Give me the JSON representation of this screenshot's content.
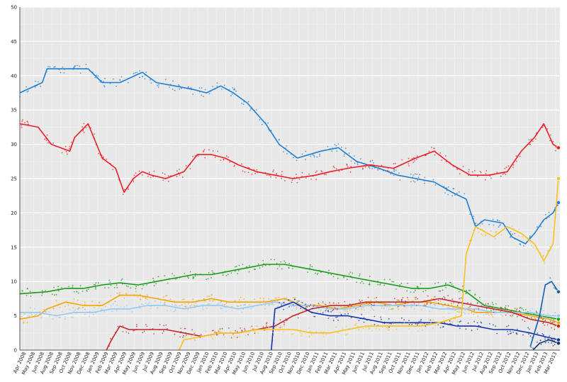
{
  "chart_data": {
    "type": "line",
    "title": "",
    "xlabel": "",
    "ylabel": "",
    "ylim": [
      0,
      50
    ],
    "grid": true,
    "y_ticks": [
      "0",
      "5",
      "10",
      "15",
      "20",
      "25",
      "30",
      "35",
      "40",
      "45",
      "50"
    ],
    "x_ticks": [
      "Apr 2008",
      "May 2008",
      "Jun 2008",
      "Aug 2008",
      "Sep 2008",
      "Oct 2008",
      "Nov 2008",
      "Dec 2008",
      "Jan 2009",
      "Feb 2009",
      "Mar 2009",
      "Apr 2009",
      "May 2009",
      "Jun 2009",
      "Jul 2009",
      "Aug 2009",
      "Sep 2009",
      "Oct 2009",
      "Nov 2009",
      "Dec 2009",
      "Jan 2010",
      "Feb 2010",
      "Mar 2010",
      "Apr 2010",
      "May 2010",
      "Jun 2010",
      "Jul 2010",
      "Aug 2010",
      "Sep 2010",
      "Oct 2010",
      "Nov 2010",
      "Dec 2010",
      "Jan 2011",
      "Feb 2011",
      "Mar 2011",
      "Apr 2011",
      "May 2011",
      "Jun 2011",
      "Jul 2011",
      "Aug 2011",
      "Sep 2011",
      "Oct 2011",
      "Nov 2011",
      "Dec 2011",
      "Jan 2012",
      "Feb 2012",
      "Mar 2012",
      "Apr 2012",
      "May 2012",
      "Jun 2012",
      "Jul 2012",
      "Aug 2012",
      "Sep 2012",
      "Oct 2012",
      "Nov 2012",
      "Dec 2012",
      "Jan 2013",
      "Feb 2013",
      "Mar 2013"
    ],
    "x_start": "2008-04-01",
    "x_end": "2013-03-10",
    "series": [
      {
        "color": "#1f7fd0",
        "values": [
          [
            "2008-04-01",
            37.5
          ],
          [
            "2008-06-15",
            39.0
          ],
          [
            "2008-07-01",
            41.0
          ],
          [
            "2008-09-01",
            41.0
          ],
          [
            "2008-11-15",
            41.0
          ],
          [
            "2009-01-01",
            39.0
          ],
          [
            "2009-03-01",
            39.0
          ],
          [
            "2009-05-15",
            40.5
          ],
          [
            "2009-07-01",
            39.0
          ],
          [
            "2009-09-01",
            38.5
          ],
          [
            "2009-11-01",
            38.0
          ],
          [
            "2009-12-15",
            37.5
          ],
          [
            "2010-02-01",
            38.5
          ],
          [
            "2010-03-15",
            37.5
          ],
          [
            "2010-05-01",
            36.0
          ],
          [
            "2010-07-01",
            33.0
          ],
          [
            "2010-08-15",
            30.0
          ],
          [
            "2010-10-15",
            28.0
          ],
          [
            "2011-01-01",
            29.0
          ],
          [
            "2011-03-01",
            29.5
          ],
          [
            "2011-05-01",
            27.5
          ],
          [
            "2011-07-15",
            26.5
          ],
          [
            "2011-09-15",
            25.5
          ],
          [
            "2011-11-15",
            25.0
          ],
          [
            "2012-01-15",
            24.5
          ],
          [
            "2012-03-15",
            23.0
          ],
          [
            "2012-05-01",
            22.0
          ],
          [
            "2012-06-01",
            18.0
          ],
          [
            "2012-07-01",
            19.0
          ],
          [
            "2012-09-01",
            18.5
          ],
          [
            "2012-10-01",
            16.5
          ],
          [
            "2012-11-15",
            15.5
          ],
          [
            "2012-12-15",
            17.0
          ],
          [
            "2013-01-15",
            19.0
          ],
          [
            "2013-02-15",
            20.0
          ],
          [
            "2013-03-05",
            21.5
          ]
        ]
      },
      {
        "color": "#e8202a",
        "values": [
          [
            "2008-04-01",
            33.0
          ],
          [
            "2008-06-01",
            32.5
          ],
          [
            "2008-07-15",
            30.0
          ],
          [
            "2008-09-15",
            29.0
          ],
          [
            "2008-10-01",
            31.0
          ],
          [
            "2008-11-15",
            33.0
          ],
          [
            "2009-01-01",
            28.0
          ],
          [
            "2009-02-15",
            26.5
          ],
          [
            "2009-03-15",
            23.0
          ],
          [
            "2009-04-15",
            25.0
          ],
          [
            "2009-05-15",
            26.0
          ],
          [
            "2009-06-15",
            25.5
          ],
          [
            "2009-08-01",
            25.0
          ],
          [
            "2009-10-01",
            26.0
          ],
          [
            "2009-11-15",
            28.5
          ],
          [
            "2010-01-01",
            28.5
          ],
          [
            "2010-02-15",
            28.0
          ],
          [
            "2010-04-01",
            27.0
          ],
          [
            "2010-06-01",
            26.0
          ],
          [
            "2010-08-01",
            25.5
          ],
          [
            "2010-10-01",
            25.0
          ],
          [
            "2010-12-15",
            25.5
          ],
          [
            "2011-02-01",
            26.0
          ],
          [
            "2011-04-01",
            26.5
          ],
          [
            "2011-06-15",
            27.0
          ],
          [
            "2011-09-01",
            26.5
          ],
          [
            "2011-11-15",
            28.0
          ],
          [
            "2012-01-15",
            29.0
          ],
          [
            "2012-03-15",
            27.0
          ],
          [
            "2012-05-15",
            25.5
          ],
          [
            "2012-07-15",
            25.5
          ],
          [
            "2012-09-15",
            26.0
          ],
          [
            "2012-11-01",
            29.0
          ],
          [
            "2012-12-15",
            31.0
          ],
          [
            "2013-01-15",
            33.0
          ],
          [
            "2013-02-15",
            30.0
          ],
          [
            "2013-03-05",
            29.5
          ]
        ]
      },
      {
        "color": "#f5a500",
        "values": [
          [
            "2008-04-01",
            4.5
          ],
          [
            "2008-06-01",
            5.0
          ],
          [
            "2008-07-01",
            6.0
          ],
          [
            "2008-09-01",
            7.0
          ],
          [
            "2008-11-01",
            6.5
          ],
          [
            "2009-01-01",
            6.5
          ],
          [
            "2009-03-01",
            8.0
          ],
          [
            "2009-05-01",
            8.0
          ],
          [
            "2009-07-01",
            7.5
          ],
          [
            "2009-09-01",
            7.0
          ],
          [
            "2009-11-01",
            7.0
          ],
          [
            "2010-01-01",
            7.5
          ],
          [
            "2010-03-01",
            7.0
          ],
          [
            "2010-05-01",
            7.0
          ],
          [
            "2010-07-01",
            7.0
          ],
          [
            "2010-09-01",
            7.5
          ],
          [
            "2010-11-01",
            6.5
          ],
          [
            "2011-01-01",
            6.5
          ],
          [
            "2011-03-01",
            6.0
          ],
          [
            "2011-05-01",
            6.5
          ],
          [
            "2011-07-01",
            7.0
          ],
          [
            "2011-09-01",
            6.5
          ],
          [
            "2011-11-01",
            7.0
          ],
          [
            "2012-01-01",
            7.0
          ],
          [
            "2012-03-01",
            6.5
          ],
          [
            "2012-05-01",
            6.0
          ],
          [
            "2012-06-01",
            5.5
          ],
          [
            "2012-08-01",
            5.5
          ],
          [
            "2012-10-01",
            5.5
          ],
          [
            "2012-12-01",
            5.0
          ],
          [
            "2013-02-01",
            4.5
          ],
          [
            "2013-03-05",
            4.0
          ]
        ]
      },
      {
        "color": "#1a9a1a",
        "values": [
          [
            "2008-04-01",
            8.2
          ],
          [
            "2008-07-01",
            8.5
          ],
          [
            "2008-09-01",
            9.0
          ],
          [
            "2008-11-01",
            9.0
          ],
          [
            "2009-01-01",
            9.5
          ],
          [
            "2009-03-01",
            9.8
          ],
          [
            "2009-05-01",
            9.5
          ],
          [
            "2009-07-01",
            10.0
          ],
          [
            "2009-09-01",
            10.5
          ],
          [
            "2009-11-01",
            11.0
          ],
          [
            "2010-01-01",
            11.0
          ],
          [
            "2010-03-01",
            11.5
          ],
          [
            "2010-05-01",
            12.0
          ],
          [
            "2010-07-01",
            12.5
          ],
          [
            "2010-09-01",
            12.5
          ],
          [
            "2010-11-01",
            12.0
          ],
          [
            "2011-01-01",
            11.5
          ],
          [
            "2011-03-01",
            11.0
          ],
          [
            "2011-05-01",
            10.5
          ],
          [
            "2011-07-01",
            10.0
          ],
          [
            "2011-09-01",
            9.5
          ],
          [
            "2011-11-01",
            9.0
          ],
          [
            "2012-01-01",
            9.0
          ],
          [
            "2012-03-01",
            9.5
          ],
          [
            "2012-05-01",
            8.5
          ],
          [
            "2012-07-01",
            6.5
          ],
          [
            "2012-09-01",
            6.0
          ],
          [
            "2012-11-01",
            5.5
          ],
          [
            "2013-01-01",
            5.0
          ],
          [
            "2013-03-05",
            4.5
          ]
        ]
      },
      {
        "color": "#96c8f0",
        "values": [
          [
            "2008-04-01",
            5.5
          ],
          [
            "2008-06-01",
            5.5
          ],
          [
            "2008-08-01",
            5.0
          ],
          [
            "2008-10-01",
            5.5
          ],
          [
            "2008-12-01",
            5.5
          ],
          [
            "2009-02-01",
            6.0
          ],
          [
            "2009-04-01",
            6.0
          ],
          [
            "2009-06-01",
            6.5
          ],
          [
            "2009-08-01",
            6.5
          ],
          [
            "2009-10-01",
            6.0
          ],
          [
            "2009-12-01",
            6.5
          ],
          [
            "2010-02-01",
            6.5
          ],
          [
            "2010-04-01",
            6.0
          ],
          [
            "2010-06-01",
            6.5
          ],
          [
            "2010-08-01",
            7.0
          ],
          [
            "2010-10-01",
            6.5
          ],
          [
            "2010-12-01",
            6.5
          ],
          [
            "2011-02-01",
            6.0
          ],
          [
            "2011-04-01",
            6.0
          ],
          [
            "2011-06-01",
            6.5
          ],
          [
            "2011-08-01",
            6.5
          ],
          [
            "2011-10-01",
            6.5
          ],
          [
            "2011-12-01",
            6.5
          ],
          [
            "2012-02-01",
            6.0
          ],
          [
            "2012-04-01",
            6.0
          ],
          [
            "2012-06-01",
            6.0
          ],
          [
            "2012-08-01",
            5.5
          ],
          [
            "2012-10-01",
            5.5
          ],
          [
            "2012-12-01",
            5.5
          ],
          [
            "2013-02-01",
            5.0
          ],
          [
            "2013-03-05",
            5.0
          ]
        ]
      },
      {
        "color": "#c0282c",
        "values": [
          [
            "2009-01-15",
            0.0
          ],
          [
            "2009-02-01",
            1.5
          ],
          [
            "2009-03-01",
            3.5
          ],
          [
            "2009-04-01",
            3.0
          ],
          [
            "2009-06-01",
            3.0
          ],
          [
            "2009-08-01",
            3.0
          ],
          [
            "2009-10-01",
            2.5
          ],
          [
            "2009-12-01",
            2.0
          ],
          [
            "2010-02-01",
            2.5
          ],
          [
            "2010-04-01",
            2.5
          ],
          [
            "2010-06-01",
            3.0
          ],
          [
            "2010-08-01",
            3.5
          ],
          [
            "2010-10-01",
            5.0
          ],
          [
            "2010-12-01",
            6.0
          ],
          [
            "2011-02-01",
            6.5
          ],
          [
            "2011-04-01",
            6.5
          ],
          [
            "2011-06-01",
            7.0
          ],
          [
            "2011-08-01",
            7.0
          ],
          [
            "2011-10-01",
            7.0
          ],
          [
            "2011-12-01",
            7.0
          ],
          [
            "2012-02-01",
            7.5
          ],
          [
            "2012-04-01",
            7.0
          ],
          [
            "2012-06-01",
            6.5
          ],
          [
            "2012-08-01",
            6.0
          ],
          [
            "2012-10-01",
            5.5
          ],
          [
            "2012-12-01",
            4.5
          ],
          [
            "2013-02-01",
            4.0
          ],
          [
            "2013-03-05",
            3.5
          ]
        ]
      },
      {
        "color": "#1432a8",
        "values": [
          [
            "2010-07-20",
            0.0
          ],
          [
            "2010-08-01",
            6.0
          ],
          [
            "2010-10-01",
            7.0
          ],
          [
            "2010-12-01",
            5.5
          ],
          [
            "2011-02-01",
            5.0
          ],
          [
            "2011-04-01",
            5.0
          ],
          [
            "2011-06-01",
            4.5
          ],
          [
            "2011-08-01",
            4.0
          ],
          [
            "2011-10-01",
            4.0
          ],
          [
            "2011-12-01",
            4.0
          ],
          [
            "2012-02-01",
            4.0
          ],
          [
            "2012-04-01",
            3.5
          ],
          [
            "2012-06-01",
            3.5
          ],
          [
            "2012-08-01",
            3.0
          ],
          [
            "2012-10-01",
            3.0
          ],
          [
            "2012-12-01",
            2.5
          ],
          [
            "2013-01-15",
            2.0
          ],
          [
            "2013-03-05",
            1.5
          ]
        ]
      },
      {
        "color": "#f8c020",
        "values": [
          [
            "2009-09-15",
            0.0
          ],
          [
            "2009-10-01",
            1.5
          ],
          [
            "2009-12-01",
            2.0
          ],
          [
            "2010-02-01",
            2.5
          ],
          [
            "2010-04-01",
            2.5
          ],
          [
            "2010-06-01",
            3.0
          ],
          [
            "2010-08-01",
            3.0
          ],
          [
            "2010-10-01",
            3.0
          ],
          [
            "2010-12-01",
            2.5
          ],
          [
            "2011-02-01",
            2.5
          ],
          [
            "2011-04-01",
            3.0
          ],
          [
            "2011-06-01",
            3.5
          ],
          [
            "2011-08-01",
            3.5
          ],
          [
            "2011-10-01",
            3.5
          ],
          [
            "2011-12-01",
            3.5
          ],
          [
            "2012-02-01",
            4.0
          ],
          [
            "2012-04-15",
            5.0
          ],
          [
            "2012-05-01",
            14.0
          ],
          [
            "2012-06-01",
            18.0
          ],
          [
            "2012-08-01",
            16.5
          ],
          [
            "2012-09-15",
            18.0
          ],
          [
            "2012-11-01",
            17.0
          ],
          [
            "2012-12-15",
            15.5
          ],
          [
            "2013-01-15",
            13.0
          ],
          [
            "2013-02-15",
            15.5
          ],
          [
            "2013-03-05",
            25.0
          ]
        ]
      },
      {
        "color": "#1060b0",
        "values": [
          [
            "2012-12-01",
            0.5
          ],
          [
            "2013-01-01",
            5.0
          ],
          [
            "2013-01-20",
            9.5
          ],
          [
            "2013-02-10",
            10.0
          ],
          [
            "2013-03-05",
            8.5
          ]
        ]
      },
      {
        "color": "#123070",
        "values": [
          [
            "2012-12-10",
            0.0
          ],
          [
            "2013-01-01",
            1.0
          ],
          [
            "2013-02-01",
            1.5
          ],
          [
            "2013-03-05",
            1.0
          ]
        ]
      }
    ]
  }
}
